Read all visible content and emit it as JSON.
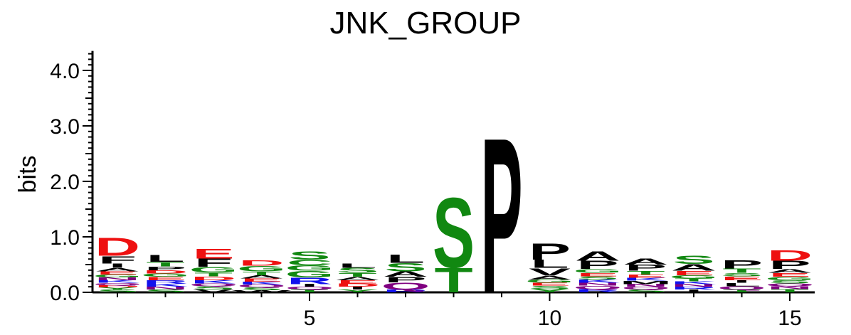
{
  "chart_data": {
    "type": "sequence-logo",
    "title": "JNK_GROUP",
    "ylabel": "bits",
    "xlabel": "",
    "ylim": [
      0,
      4.3
    ],
    "y_ticks": [
      "0.0",
      "1.0",
      "2.0",
      "3.0",
      "4.0"
    ],
    "x_ticks": [
      "5",
      "10",
      "15"
    ],
    "colors": {
      "red": "#ee1111",
      "green": "#118811",
      "blue": "#1111ee",
      "black": "#000000",
      "purple": "#800080"
    },
    "positions": [
      {
        "pos": 1,
        "letters": [
          [
            "S",
            0.05,
            "green"
          ],
          [
            "Y",
            0.04,
            "green"
          ],
          [
            "D",
            0.04,
            "red"
          ],
          [
            "Q",
            0.04,
            "purple"
          ],
          [
            "K",
            0.05,
            "blue"
          ],
          [
            "N",
            0.05,
            "purple"
          ],
          [
            "G",
            0.05,
            "green"
          ],
          [
            "E",
            0.06,
            "red"
          ],
          [
            "A",
            0.06,
            "black"
          ],
          [
            "I",
            0.08,
            "black"
          ],
          [
            "F",
            0.14,
            "black"
          ],
          [
            "D",
            0.33,
            "red"
          ]
        ]
      },
      {
        "pos": 2,
        "letters": [
          [
            "S",
            0.05,
            "green"
          ],
          [
            "N",
            0.05,
            "purple"
          ],
          [
            "K",
            0.06,
            "blue"
          ],
          [
            "R",
            0.06,
            "blue"
          ],
          [
            "E",
            0.06,
            "red"
          ],
          [
            "G",
            0.06,
            "green"
          ],
          [
            "D",
            0.06,
            "red"
          ],
          [
            "P",
            0.07,
            "black"
          ],
          [
            "T",
            0.08,
            "green"
          ],
          [
            "L",
            0.13,
            "black"
          ]
        ]
      },
      {
        "pos": 3,
        "letters": [
          [
            "V",
            0.05,
            "black"
          ],
          [
            "S",
            0.06,
            "green"
          ],
          [
            "Q",
            0.05,
            "purple"
          ],
          [
            "K",
            0.06,
            "blue"
          ],
          [
            "D",
            0.07,
            "red"
          ],
          [
            "T",
            0.07,
            "green"
          ],
          [
            "G",
            0.1,
            "green"
          ],
          [
            "F",
            0.15,
            "black"
          ],
          [
            "E",
            0.18,
            "red"
          ]
        ]
      },
      {
        "pos": 4,
        "letters": [
          [
            "W",
            0.04,
            "black"
          ],
          [
            "S",
            0.05,
            "green"
          ],
          [
            "Q",
            0.05,
            "purple"
          ],
          [
            "K",
            0.05,
            "blue"
          ],
          [
            "E",
            0.06,
            "red"
          ],
          [
            "A",
            0.06,
            "black"
          ],
          [
            "T",
            0.07,
            "green"
          ],
          [
            "G",
            0.1,
            "green"
          ],
          [
            "D",
            0.1,
            "red"
          ]
        ]
      },
      {
        "pos": 5,
        "letters": [
          [
            "T",
            0.05,
            "green"
          ],
          [
            "Q",
            0.05,
            "purple"
          ],
          [
            "I",
            0.05,
            "black"
          ],
          [
            "R",
            0.12,
            "blue"
          ],
          [
            "G",
            0.12,
            "green"
          ],
          [
            "G",
            0.1,
            "green"
          ],
          [
            "C",
            0.1,
            "green"
          ],
          [
            "S",
            0.15,
            "green"
          ]
        ]
      },
      {
        "pos": 6,
        "letters": [
          [
            "Y",
            0.05,
            "green"
          ],
          [
            "I",
            0.05,
            "black"
          ],
          [
            "D",
            0.06,
            "red"
          ],
          [
            "E",
            0.06,
            "red"
          ],
          [
            "A",
            0.06,
            "black"
          ],
          [
            "T",
            0.07,
            "green"
          ],
          [
            "S",
            0.09,
            "green"
          ],
          [
            "L",
            0.08,
            "black"
          ]
        ]
      },
      {
        "pos": 7,
        "letters": [
          [
            "R",
            0.05,
            "blue"
          ],
          [
            "Q",
            0.13,
            "purple"
          ],
          [
            "P",
            0.1,
            "black"
          ],
          [
            "A",
            0.1,
            "black"
          ],
          [
            "S",
            0.15,
            "green"
          ],
          [
            "L",
            0.15,
            "black"
          ]
        ]
      },
      {
        "pos": 8,
        "letters": [
          [
            "T",
            0.45,
            "green"
          ],
          [
            "S",
            1.3,
            "green"
          ]
        ]
      },
      {
        "pos": 9,
        "letters": [
          [
            "P",
            2.88,
            "black"
          ]
        ]
      },
      {
        "pos": 10,
        "letters": [
          [
            "Y",
            0.06,
            "green"
          ],
          [
            "S",
            0.06,
            "green"
          ],
          [
            "E",
            0.05,
            "red"
          ],
          [
            "G",
            0.06,
            "green"
          ],
          [
            "A",
            0.07,
            "black"
          ],
          [
            "V",
            0.14,
            "black"
          ],
          [
            "L",
            0.15,
            "black"
          ],
          [
            "P",
            0.3,
            "black"
          ]
        ]
      },
      {
        "pos": 11,
        "letters": [
          [
            "R",
            0.06,
            "blue"
          ],
          [
            "Q",
            0.06,
            "purple"
          ],
          [
            "N",
            0.05,
            "purple"
          ],
          [
            "K",
            0.06,
            "blue"
          ],
          [
            "S",
            0.06,
            "green"
          ],
          [
            "E",
            0.06,
            "red"
          ],
          [
            "G",
            0.07,
            "green"
          ],
          [
            "P",
            0.15,
            "black"
          ],
          [
            "A",
            0.17,
            "black"
          ]
        ]
      },
      {
        "pos": 12,
        "letters": [
          [
            "S",
            0.05,
            "green"
          ],
          [
            "Q",
            0.05,
            "purple"
          ],
          [
            "N",
            0.05,
            "purple"
          ],
          [
            "M",
            0.06,
            "black"
          ],
          [
            "K",
            0.05,
            "blue"
          ],
          [
            "E",
            0.06,
            "red"
          ],
          [
            "T",
            0.07,
            "green"
          ],
          [
            "P",
            0.11,
            "black"
          ],
          [
            "A",
            0.11,
            "black"
          ]
        ]
      },
      {
        "pos": 13,
        "letters": [
          [
            "I",
            0.05,
            "black"
          ],
          [
            "R",
            0.05,
            "blue"
          ],
          [
            "N",
            0.05,
            "purple"
          ],
          [
            "K",
            0.05,
            "blue"
          ],
          [
            "T",
            0.05,
            "green"
          ],
          [
            "G",
            0.06,
            "green"
          ],
          [
            "E",
            0.08,
            "red"
          ],
          [
            "A",
            0.12,
            "black"
          ],
          [
            "S",
            0.15,
            "green"
          ]
        ]
      },
      {
        "pos": 14,
        "letters": [
          [
            "T",
            0.05,
            "green"
          ],
          [
            "Q",
            0.06,
            "purple"
          ],
          [
            "L",
            0.06,
            "black"
          ],
          [
            "I",
            0.05,
            "black"
          ],
          [
            "E",
            0.07,
            "red"
          ],
          [
            "S",
            0.06,
            "green"
          ],
          [
            "T",
            0.08,
            "green"
          ],
          [
            "P",
            0.15,
            "black"
          ]
        ]
      },
      {
        "pos": 15,
        "letters": [
          [
            "T",
            0.06,
            "green"
          ],
          [
            "N",
            0.05,
            "purple"
          ],
          [
            "Q",
            0.05,
            "purple"
          ],
          [
            "S",
            0.06,
            "green"
          ],
          [
            "G",
            0.06,
            "green"
          ],
          [
            "E",
            0.07,
            "red"
          ],
          [
            "A",
            0.07,
            "black"
          ],
          [
            "P",
            0.15,
            "black"
          ],
          [
            "D",
            0.2,
            "red"
          ]
        ]
      }
    ]
  }
}
